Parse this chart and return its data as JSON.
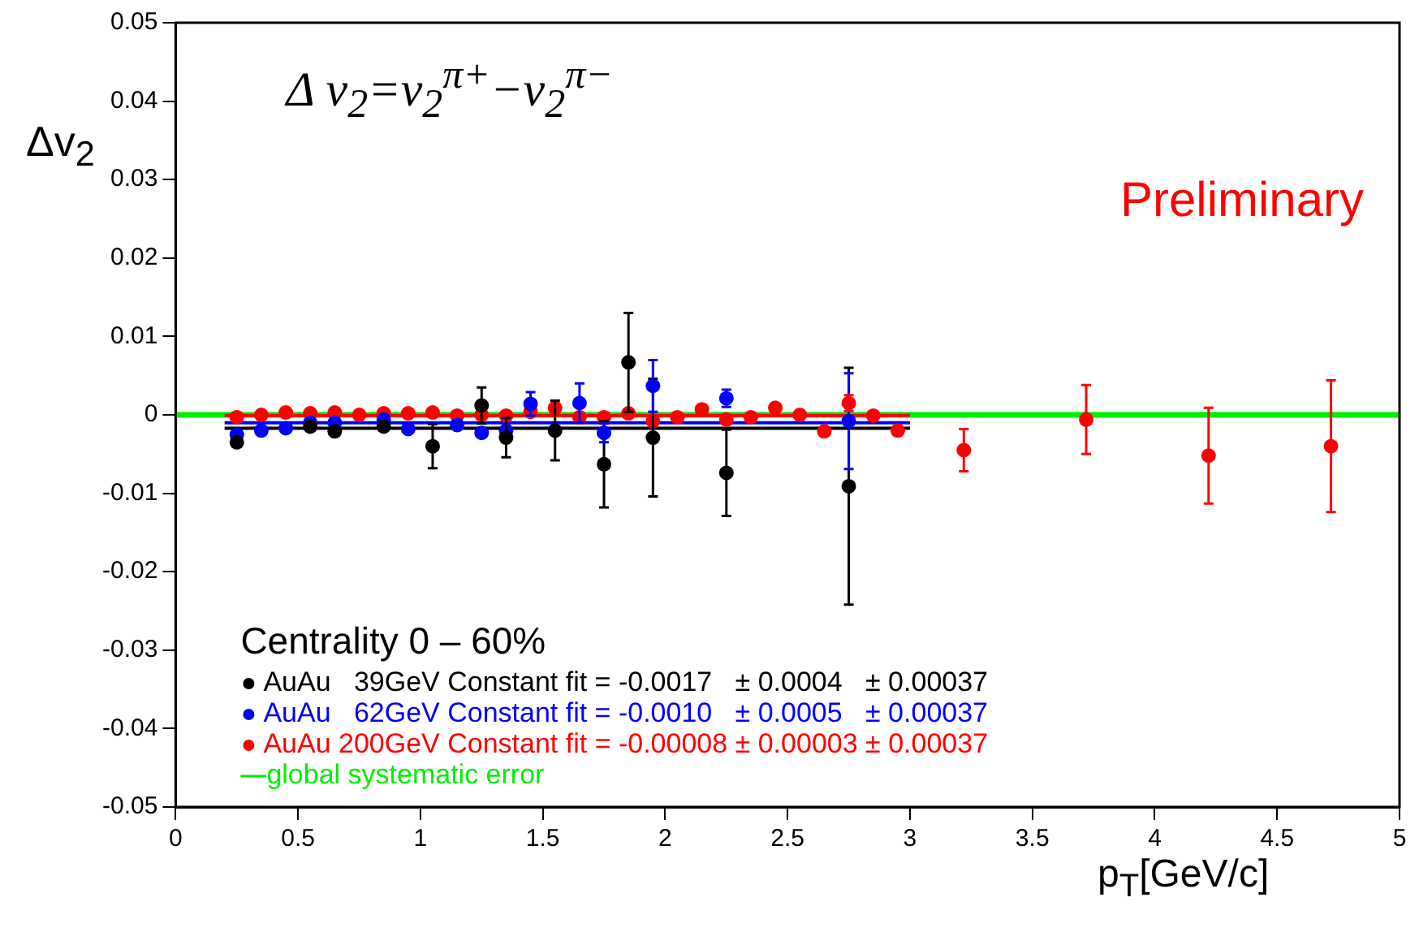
{
  "chart_data": {
    "type": "scatter",
    "annotations": [
      "Δ v$_{2}$=v$_{2}$$^{π+}$−v$_{2}$$^{π−}$",
      "Preliminary"
    ],
    "xlabel": "p$_{T}$[GeV/c]",
    "ylabel": "Δv$_{2}$",
    "legend_title": "Centrality 0 – 60%",
    "xlim": [
      0,
      5
    ],
    "xticks": [
      0,
      0.5,
      1,
      1.5,
      2,
      2.5,
      3,
      3.5,
      4,
      4.5,
      5
    ],
    "ylim": [
      -0.05,
      0.05
    ],
    "yticks": [
      -0.05,
      -0.04,
      -0.03,
      -0.02,
      -0.01,
      0,
      0.01,
      0.02,
      0.03,
      0.04,
      0.05
    ],
    "grid": false,
    "legend": "bottom left",
    "marker": "circle",
    "bands": [
      {
        "axis": "y",
        "from": -0.00037,
        "to": 0.00037,
        "color": "#00ee00",
        "label": "global systematic error"
      }
    ],
    "series": [
      {
        "name": "AuAu   39GeV Constant fit = -0.0017   ± 0.0004   ± 0.00037",
        "color": "#000000",
        "x": [
          0.25,
          0.55,
          0.65,
          0.85,
          1.05,
          1.25,
          1.35,
          1.55,
          1.75,
          1.85,
          1.95,
          2.25,
          2.75
        ],
        "values": [
          -0.0035,
          -0.0015,
          -0.0021,
          -0.0015,
          -0.004,
          0.0012,
          -0.0029,
          -0.002,
          -0.0063,
          0.0067,
          -0.0029,
          -0.0074,
          -0.0091
        ],
        "errors": [
          null,
          null,
          null,
          null,
          0.0028,
          0.0023,
          0.0025,
          0.0038,
          0.0055,
          0.0063,
          0.0075,
          0.0055,
          0.0151
        ]
      },
      {
        "name": "AuAu   62GeV Constant fit = -0.0010   ± 0.0005   ± 0.00037",
        "color": "#0000ff",
        "x": [
          0.25,
          0.35,
          0.45,
          0.55,
          0.65,
          0.85,
          0.95,
          1.15,
          1.25,
          1.35,
          1.45,
          1.65,
          1.75,
          1.95,
          2.25,
          2.75
        ],
        "values": [
          -0.0025,
          -0.002,
          -0.0017,
          -0.001,
          -0.001,
          -0.0006,
          -0.0018,
          -0.0013,
          -0.0023,
          -0.002,
          0.0014,
          0.0015,
          -0.0023,
          0.0037,
          0.0021,
          -0.0008
        ],
        "errors": [
          null,
          null,
          null,
          null,
          null,
          null,
          null,
          null,
          null,
          null,
          0.0015,
          0.0025,
          0.0012,
          0.0033,
          0.0011,
          0.0061
        ]
      },
      {
        "name": "AuAu 200GeV Constant fit = -0.00008 ± 0.00003 ± 0.00037",
        "color": "#ff0000",
        "x": [
          0.25,
          0.35,
          0.45,
          0.55,
          0.65,
          0.75,
          0.85,
          0.95,
          1.05,
          1.15,
          1.25,
          1.35,
          1.45,
          1.55,
          1.65,
          1.75,
          1.85,
          1.95,
          2.05,
          2.15,
          2.25,
          2.35,
          2.45,
          2.55,
          2.65,
          2.75,
          2.85,
          2.95,
          3.22,
          3.72,
          4.22,
          4.72
        ],
        "values": [
          -0.0003,
          0,
          0.0003,
          0.0002,
          0.0003,
          0,
          0.0002,
          0.0002,
          0.0003,
          -0.0001,
          0,
          -0.0001,
          0.0004,
          0.0009,
          -0.0003,
          -0.0003,
          0.0002,
          -0.0008,
          -0.0003,
          0.0007,
          -0.0006,
          -0.0003,
          0.0009,
          0,
          -0.0021,
          0.0015,
          -0.0001,
          -0.002,
          -0.0045,
          -0.0006,
          -0.0052,
          -0.004
        ],
        "errors": [
          null,
          null,
          null,
          null,
          null,
          null,
          null,
          null,
          null,
          null,
          null,
          null,
          null,
          null,
          null,
          null,
          null,
          null,
          null,
          null,
          null,
          null,
          null,
          null,
          null,
          0.001,
          null,
          null,
          0.0027,
          0.0044,
          0.0061,
          0.0084
        ]
      },
      {
        "type": "line",
        "marker": "none",
        "color": "#000000",
        "x": [
          0.2,
          3.0
        ],
        "values": [
          -0.0017,
          -0.0017
        ]
      },
      {
        "type": "line",
        "marker": "none",
        "color": "#0000ff",
        "x": [
          0.2,
          3.0
        ],
        "values": [
          -0.001,
          -0.001
        ]
      },
      {
        "type": "line",
        "marker": "none",
        "color": "#ff0000",
        "x": [
          0.2,
          3.0
        ],
        "values": [
          -8e-05,
          -8e-05
        ]
      }
    ]
  }
}
